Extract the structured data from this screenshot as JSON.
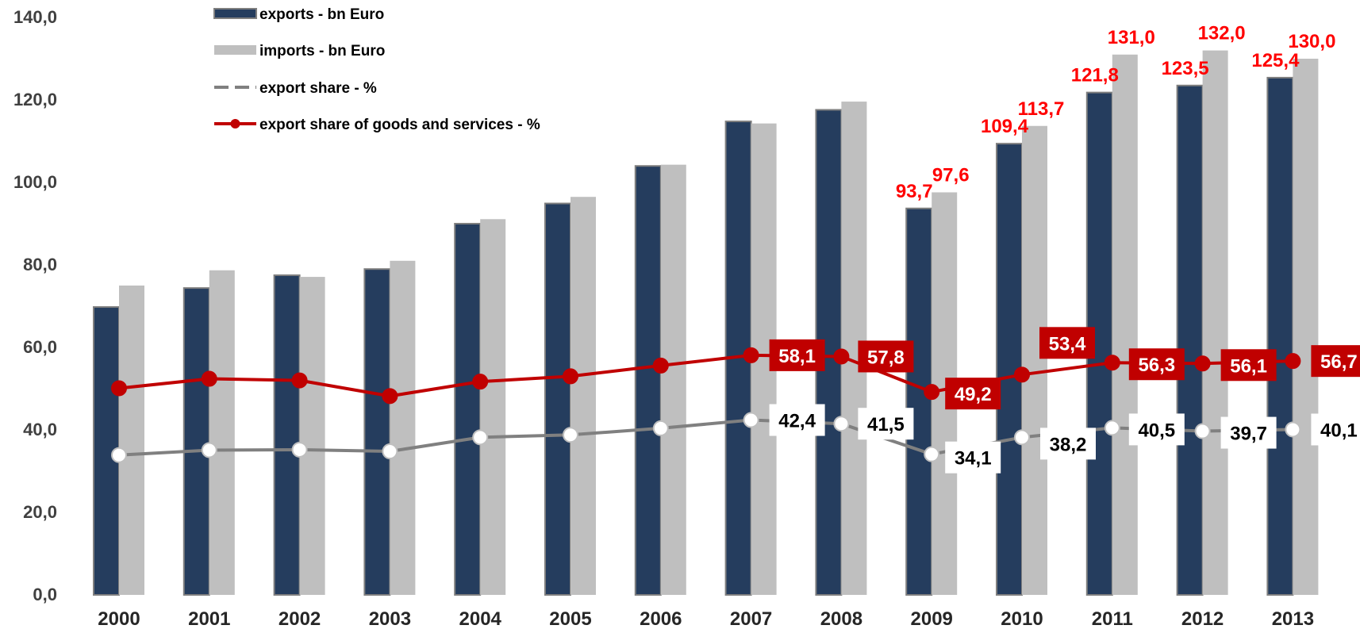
{
  "chart_data": {
    "type": "bar",
    "categories": [
      "2000",
      "2001",
      "2002",
      "2003",
      "2004",
      "2005",
      "2006",
      "2007",
      "2008",
      "2009",
      "2010",
      "2011",
      "2012",
      "2013"
    ],
    "ylim": [
      0,
      140
    ],
    "y_ticks": [
      "0,0",
      "20,0",
      "40,0",
      "60,0",
      "80,0",
      "100,0",
      "120,0",
      "140,0"
    ],
    "title": "",
    "xlabel": "",
    "ylabel": "",
    "grid": false,
    "legend_position": "top-left",
    "series": [
      {
        "name": "exports - bn Euro",
        "kind": "bar",
        "color": "#253d5e",
        "values": [
          69.8,
          74.4,
          77.5,
          79.0,
          90.0,
          94.9,
          104.0,
          114.8,
          117.6,
          93.7,
          109.4,
          121.8,
          123.5,
          125.4
        ],
        "labels": [
          "",
          "",
          "",
          "",
          "",
          "",
          "",
          "",
          "",
          "93,7",
          "109,4",
          "121,8",
          "123,5",
          "125,4"
        ]
      },
      {
        "name": "imports - bn Euro",
        "kind": "bar",
        "color": "#bfbfbf",
        "values": [
          75.0,
          78.7,
          77.1,
          81.0,
          91.1,
          96.5,
          104.3,
          114.3,
          119.6,
          97.6,
          113.7,
          131.0,
          132.0,
          130.0
        ],
        "labels": [
          "",
          "",
          "",
          "",
          "",
          "",
          "",
          "",
          "",
          "97,6",
          "113,7",
          "131,0",
          "132,0",
          "130,0"
        ]
      },
      {
        "name": "export share - %",
        "kind": "line",
        "color": "#808080",
        "values": [
          33.9,
          35.1,
          35.2,
          34.8,
          38.2,
          38.8,
          40.4,
          42.4,
          41.5,
          34.1,
          38.2,
          40.5,
          39.7,
          40.1
        ],
        "labels": [
          "",
          "",
          "",
          "",
          "",
          "",
          "",
          "42,4",
          "41,5",
          "34,1",
          "38,2",
          "40,5",
          "39,7",
          "40,1"
        ]
      },
      {
        "name": "export share of goods and services - %",
        "kind": "line",
        "color": "#c00000",
        "values": [
          50.1,
          52.4,
          52.0,
          48.2,
          51.7,
          53.0,
          55.6,
          58.1,
          57.8,
          49.2,
          53.4,
          56.3,
          56.1,
          56.7
        ],
        "labels": [
          "",
          "",
          "",
          "",
          "",
          "",
          "",
          "58,1",
          "57,8",
          "49,2",
          "53,4",
          "56,3",
          "56,1",
          "56,7"
        ]
      }
    ]
  }
}
